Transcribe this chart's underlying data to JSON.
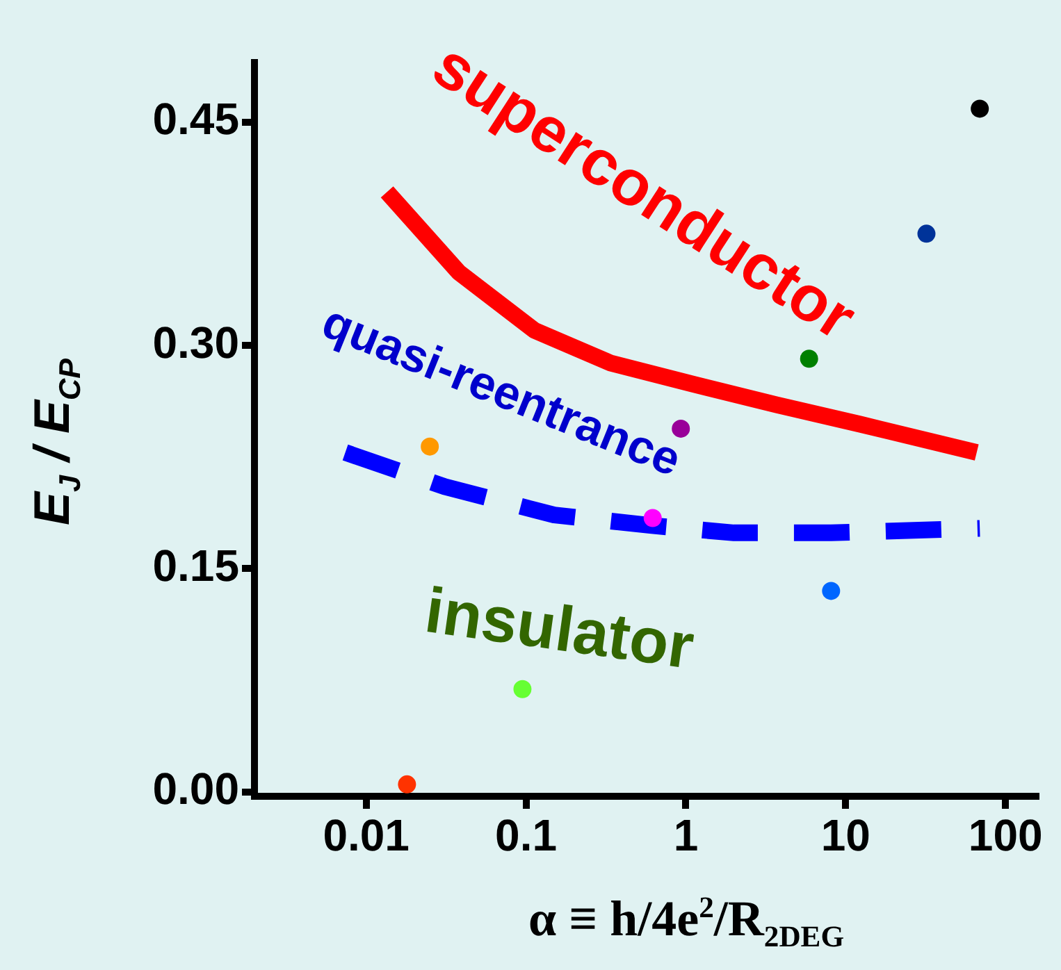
{
  "chart_data": {
    "type": "scatter",
    "xlabel": "α ≡ h/4e$^{2}$/R$_{2DEG}$",
    "ylabel": "E$_{J}$ / E$_{CP}$",
    "log": "x",
    "xlim": [
      0.002,
      155
    ],
    "xticks": [
      0.01,
      0.1,
      1,
      10,
      100
    ],
    "ylim": [
      -0.003,
      0.49
    ],
    "yticks": [
      {
        "value": 0,
        "label": "0.00"
      },
      {
        "value": 0.15,
        "label": "0.15"
      },
      {
        "value": 0.3,
        "label": "0.30"
      },
      {
        "value": 0.45,
        "label": "0.45"
      }
    ],
    "grid": false,
    "legend": false,
    "marker": "circle",
    "annotations": [
      "superconductor",
      "quasi-reentrance",
      "insulator"
    ],
    "series": [
      {
        "type": "line",
        "color": "#ff0000",
        "line_style": "solid",
        "marker": "none",
        "x": [
          0.0135,
          0.038,
          0.113,
          0.34,
          1.1,
          3.7,
          12.3,
          66
        ],
        "values": [
          0.403,
          0.349,
          0.31,
          0.288,
          0.274,
          0.26,
          0.247,
          0.228
        ]
      },
      {
        "type": "line",
        "color": "#0000ff",
        "line_style": "dashed",
        "marker": "none",
        "x": [
          0.0074,
          0.031,
          0.15,
          0.6,
          2.0,
          8.1,
          69
        ],
        "values": [
          0.228,
          0.205,
          0.186,
          0.179,
          0.174,
          0.174,
          0.177
        ]
      },
      {
        "x": [
          0.018,
          0.025,
          0.095,
          0.62,
          0.93,
          5.9,
          8.1,
          32,
          69
        ],
        "values": [
          0.005,
          0.232,
          0.069,
          0.184,
          0.244,
          0.291,
          0.135,
          0.375,
          0.459
        ],
        "colors": [
          "#ff3300",
          "#ff9900",
          "#66ff33",
          "#ff00ff",
          "#990099",
          "#008000",
          "#0066ff",
          "#003399",
          "#000000"
        ]
      }
    ]
  }
}
